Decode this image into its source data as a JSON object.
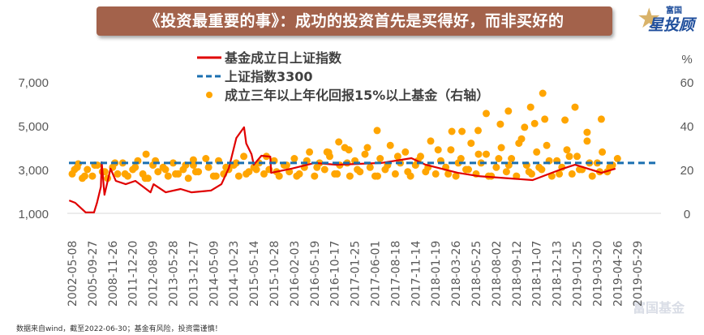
{
  "header": {
    "title": "《投资最重要的事》：成功的投资首先是买得好，而非买好的",
    "logo_small": "富国",
    "logo_big": "星投顾"
  },
  "footer": {
    "note": "数据来自wind，截至2022-06-30；基金有风险，投资需谨慎！",
    "watermark": "富国基金"
  },
  "colors": {
    "banner": "#a3624b",
    "index_line": "#e00000",
    "ref_line": "#1a6fb0",
    "scatter": "#ffa500"
  },
  "chart_data": {
    "type": "line+scatter",
    "x_tick_labels": [
      "2002-05-08",
      "2005-09-27",
      "2008-11-26",
      "2011-12-20",
      "2012-08-09",
      "2013-05-28",
      "2013-12-17",
      "2014-05-09",
      "2014-10-23",
      "2015-05-14",
      "2015-10-28",
      "2016-02-03",
      "2016-05-19",
      "2016-10-17",
      "2017-01-25",
      "2017-06-01",
      "2017-08-18",
      "2017-11-14",
      "2018-01-19",
      "2018-03-26",
      "2018-05-25",
      "2018-08-02",
      "2018-09-12",
      "2018-11-07",
      "2018-12-13",
      "2019-01-25",
      "2019-03-20",
      "2019-04-26",
      "2019-05-29"
    ],
    "left_axis": {
      "ylim": [
        1000,
        7000
      ],
      "ticks": [
        1000,
        3000,
        5000,
        7000
      ],
      "tick_labels": [
        "1,000",
        "3,000",
        "5,000",
        "7,000"
      ]
    },
    "right_axis": {
      "label": "%",
      "ylim": [
        0,
        60
      ],
      "ticks": [
        0,
        20,
        40,
        60
      ],
      "tick_labels": [
        "0",
        "20",
        "40",
        "60"
      ]
    },
    "legend": {
      "placement": "top-center",
      "items": [
        "基金成立日上证指数",
        "上证指数3300",
        "成立三年以上年化回报15%以上基金（右轴）"
      ]
    },
    "series": [
      {
        "name": "基金成立日上证指数",
        "kind": "line",
        "axis": "left",
        "points": [
          [
            -0.15,
            1590
          ],
          [
            0.15,
            1480
          ],
          [
            0.67,
            1040
          ],
          [
            1.08,
            1040
          ],
          [
            1.23,
            1480
          ],
          [
            1.42,
            2220
          ],
          [
            1.46,
            3330
          ],
          [
            1.6,
            1850
          ],
          [
            1.9,
            3040
          ],
          [
            2.16,
            2480
          ],
          [
            2.65,
            2330
          ],
          [
            3.13,
            2480
          ],
          [
            3.88,
            1960
          ],
          [
            4.03,
            2330
          ],
          [
            4.63,
            1960
          ],
          [
            5.37,
            2110
          ],
          [
            5.9,
            1960
          ],
          [
            6.87,
            2040
          ],
          [
            7.39,
            2330
          ],
          [
            7.76,
            3070
          ],
          [
            8.13,
            4440
          ],
          [
            8.51,
            4930
          ],
          [
            8.62,
            4190
          ],
          [
            8.88,
            3700
          ],
          [
            8.99,
            3220
          ],
          [
            9.37,
            3630
          ],
          [
            9.81,
            3590
          ],
          [
            9.85,
            2850
          ],
          [
            10.9,
            3050
          ],
          [
            12.0,
            3300
          ],
          [
            13.1,
            3220
          ],
          [
            15.3,
            3300
          ],
          [
            16.8,
            3520
          ],
          [
            17.5,
            3220
          ],
          [
            19.1,
            2850
          ],
          [
            20.1,
            2700
          ],
          [
            22.8,
            2520
          ],
          [
            24.3,
            3040
          ],
          [
            24.9,
            3220
          ],
          [
            26.2,
            2850
          ],
          [
            26.9,
            3040
          ]
        ]
      },
      {
        "name": "上证指数3300",
        "kind": "reference",
        "axis": "left",
        "value": 3300
      },
      {
        "name": "成立三年以上年化回报15%以上基金（右轴）",
        "kind": "scatter",
        "axis": "right",
        "points": [
          [
            0,
            18
          ],
          [
            0.25,
            21
          ],
          [
            0.5,
            16
          ],
          [
            0.75,
            20
          ],
          [
            1,
            17
          ],
          [
            1.25,
            22
          ],
          [
            1.5,
            19
          ],
          [
            1.75,
            16
          ],
          [
            2,
            21
          ],
          [
            2.25,
            18
          ],
          [
            2.5,
            23
          ],
          [
            2.75,
            17
          ],
          [
            3,
            20
          ],
          [
            3.25,
            24
          ],
          [
            3.5,
            18
          ],
          [
            3.75,
            16
          ],
          [
            4,
            22
          ],
          [
            4.25,
            19
          ],
          [
            4.5,
            21
          ],
          [
            4.75,
            17
          ],
          [
            5,
            23
          ],
          [
            5.25,
            18
          ],
          [
            5.5,
            20
          ],
          [
            5.75,
            16
          ],
          [
            6,
            22
          ],
          [
            6.25,
            19
          ],
          [
            6.75,
            21
          ],
          [
            7,
            17
          ],
          [
            7.25,
            24
          ],
          [
            7.5,
            18
          ],
          [
            7.75,
            20
          ],
          [
            8,
            22
          ],
          [
            8.25,
            17
          ],
          [
            8.5,
            26
          ],
          [
            8.75,
            19
          ],
          [
            9,
            21
          ],
          [
            9.25,
            23
          ],
          [
            9.5,
            18
          ],
          [
            9.75,
            20
          ],
          [
            10,
            24
          ],
          [
            10.25,
            17
          ],
          [
            10.5,
            22
          ],
          [
            10.75,
            19
          ],
          [
            11,
            25
          ],
          [
            11.25,
            18
          ],
          [
            11.5,
            21
          ],
          [
            11.75,
            28
          ],
          [
            12,
            17
          ],
          [
            12.25,
            23
          ],
          [
            12.5,
            20
          ],
          [
            12.75,
            26
          ],
          [
            13,
            18
          ],
          [
            13.25,
            22
          ],
          [
            13.5,
            30
          ],
          [
            13.75,
            17
          ],
          [
            14,
            24
          ],
          [
            14.25,
            19
          ],
          [
            14.5,
            27
          ],
          [
            14.75,
            21
          ],
          [
            15,
            17
          ],
          [
            15.25,
            25
          ],
          [
            15.5,
            20
          ],
          [
            15.75,
            31
          ],
          [
            16,
            18
          ],
          [
            16.25,
            23
          ],
          [
            16.5,
            28
          ],
          [
            16.75,
            17
          ],
          [
            17,
            22
          ],
          [
            17.25,
            26
          ],
          [
            17.5,
            19
          ],
          [
            17.75,
            33
          ],
          [
            18,
            18
          ],
          [
            18.25,
            24
          ],
          [
            18.5,
            21
          ],
          [
            18.75,
            29
          ],
          [
            19,
            17
          ],
          [
            19.25,
            25
          ],
          [
            19.5,
            20
          ],
          [
            19.75,
            32
          ],
          [
            20,
            18
          ],
          [
            20.25,
            23
          ],
          [
            20.5,
            27
          ],
          [
            20.75,
            17
          ],
          [
            21,
            21
          ],
          [
            21.25,
            30
          ],
          [
            21.5,
            19
          ],
          [
            21.75,
            25
          ],
          [
            22,
            17
          ],
          [
            22.25,
            34
          ],
          [
            22.5,
            22
          ],
          [
            22.75,
            18
          ],
          [
            23,
            28
          ],
          [
            23.25,
            20
          ],
          [
            23.5,
            31
          ],
          [
            23.75,
            17
          ],
          [
            24,
            24
          ],
          [
            24.25,
            21
          ],
          [
            24.5,
            29
          ],
          [
            24.75,
            18
          ],
          [
            25,
            26
          ],
          [
            25.25,
            20
          ],
          [
            25.5,
            33
          ],
          [
            25.75,
            17
          ],
          [
            26,
            23
          ],
          [
            26.25,
            28
          ],
          [
            26.5,
            19
          ],
          [
            26.75,
            22
          ],
          [
            27,
            25
          ],
          [
            0.12,
            20
          ],
          [
            0.62,
            17
          ],
          [
            1.12,
            22
          ],
          [
            1.62,
            19
          ],
          [
            2.12,
            23
          ],
          [
            2.62,
            18
          ],
          [
            3.12,
            21
          ],
          [
            3.62,
            16
          ],
          [
            4.12,
            24
          ],
          [
            4.62,
            20
          ],
          [
            5.12,
            18
          ],
          [
            5.62,
            22
          ],
          [
            6.12,
            19
          ],
          [
            6.62,
            25
          ],
          [
            7.12,
            17
          ],
          [
            7.62,
            21
          ],
          [
            8.12,
            23
          ],
          [
            8.62,
            18
          ],
          [
            9.12,
            20
          ],
          [
            9.62,
            26
          ],
          [
            10.12,
            19
          ],
          [
            10.62,
            22
          ],
          [
            11.12,
            17
          ],
          [
            11.62,
            24
          ],
          [
            12.12,
            21
          ],
          [
            12.62,
            28
          ],
          [
            13.12,
            18
          ],
          [
            13.62,
            23
          ],
          [
            14.12,
            20
          ],
          [
            14.62,
            30
          ],
          [
            15.12,
            17
          ],
          [
            15.62,
            22
          ],
          [
            16.12,
            26
          ],
          [
            16.62,
            19
          ],
          [
            17.12,
            24
          ],
          [
            17.62,
            21
          ],
          [
            18.12,
            29
          ],
          [
            18.62,
            18
          ],
          [
            19.12,
            23
          ],
          [
            19.62,
            20
          ],
          [
            20.12,
            27
          ],
          [
            20.62,
            17
          ],
          [
            21.12,
            25
          ],
          [
            21.62,
            22
          ],
          [
            22.12,
            32
          ],
          [
            22.62,
            19
          ],
          [
            23.12,
            21
          ],
          [
            23.62,
            24
          ],
          [
            24.12,
            18
          ],
          [
            24.62,
            26
          ],
          [
            25.12,
            20
          ],
          [
            25.62,
            23
          ],
          [
            26.12,
            19
          ],
          [
            26.62,
            21
          ],
          [
            20.5,
            45.6
          ],
          [
            21.6,
            46.7
          ],
          [
            22.7,
            48.5
          ],
          [
            23.3,
            54.8
          ],
          [
            24.9,
            48.5
          ],
          [
            26.2,
            43
          ],
          [
            15.1,
            37.8
          ],
          [
            18.8,
            37.4
          ],
          [
            19.3,
            37.4
          ],
          [
            20.1,
            37.8
          ],
          [
            21.2,
            40.7
          ],
          [
            22.4,
            39.3
          ],
          [
            22.9,
            41
          ],
          [
            23.4,
            43
          ],
          [
            24.4,
            42.6
          ],
          [
            25.5,
            37
          ],
          [
            13.2,
            32.6
          ],
          [
            13.7,
            29
          ],
          [
            12.7,
            27.8
          ],
          [
            3.66,
            27
          ],
          [
            6.0,
            24.4
          ],
          [
            0.3,
            22.6
          ]
        ]
      }
    ]
  }
}
